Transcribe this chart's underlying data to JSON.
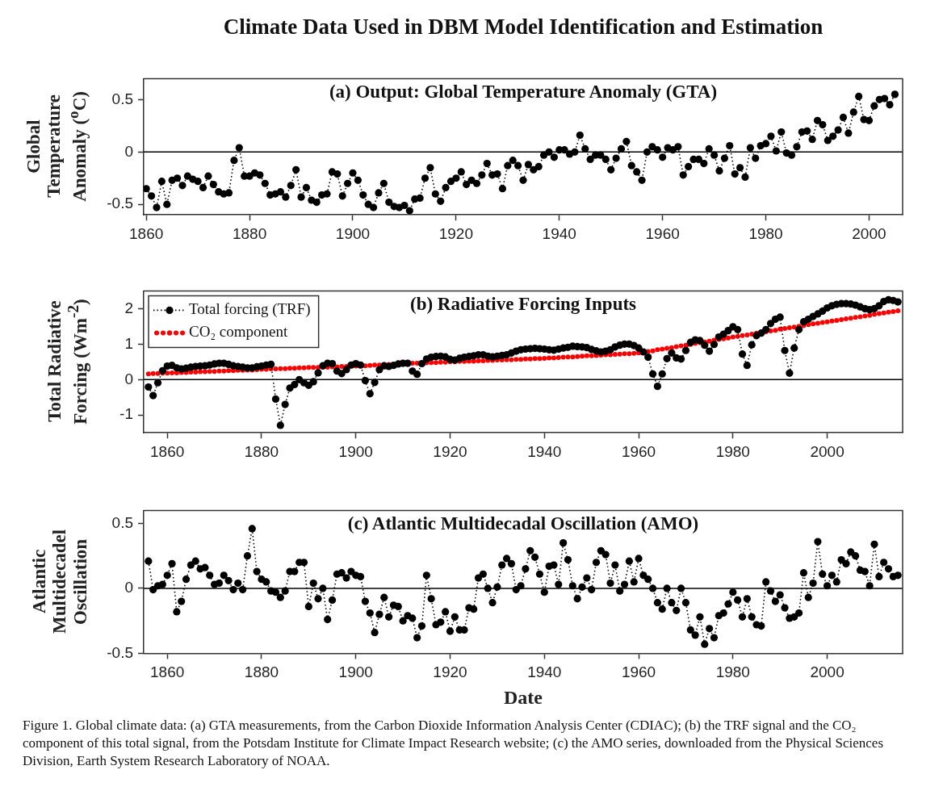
{
  "chart_data": [
    {
      "type": "line",
      "title": "(a) Output: Global Temperature Anomaly (GTA)",
      "ylabel": "Global Temperature Anomaly ($^{o}$C)",
      "annotations": [
        "Climate Data Used in DBM Model Identification and Estimation"
      ],
      "xlim": [
        1859.5,
        2006.5
      ],
      "xticks": [
        1860,
        1880,
        1900,
        1920,
        1940,
        1960,
        1980,
        2000
      ],
      "ylim": [
        -0.6,
        0.7
      ],
      "yticks": [
        -0.5,
        0,
        0.5
      ],
      "marker": "circle",
      "line_style": "dotted",
      "ref_lines": [
        {
          "axis": "y",
          "value": 0,
          "color": "#000000"
        }
      ],
      "series": [
        {
          "color": "#000000",
          "x": [
            1860,
            1861,
            1862,
            1863,
            1864,
            1865,
            1866,
            1867,
            1868,
            1869,
            1870,
            1871,
            1872,
            1873,
            1874,
            1875,
            1876,
            1877,
            1878,
            1879,
            1880,
            1881,
            1882,
            1883,
            1884,
            1885,
            1886,
            1887,
            1888,
            1889,
            1890,
            1891,
            1892,
            1893,
            1894,
            1895,
            1896,
            1897,
            1898,
            1899,
            1900,
            1901,
            1902,
            1903,
            1904,
            1905,
            1906,
            1907,
            1908,
            1909,
            1910,
            1911,
            1912,
            1913,
            1914,
            1915,
            1916,
            1917,
            1918,
            1919,
            1920,
            1921,
            1922,
            1923,
            1924,
            1925,
            1926,
            1927,
            1928,
            1929,
            1930,
            1931,
            1932,
            1933,
            1934,
            1935,
            1936,
            1937,
            1938,
            1939,
            1940,
            1941,
            1942,
            1943,
            1944,
            1945,
            1946,
            1947,
            1948,
            1949,
            1950,
            1951,
            1952,
            1953,
            1954,
            1955,
            1956,
            1957,
            1958,
            1959,
            1960,
            1961,
            1962,
            1963,
            1964,
            1965,
            1966,
            1967,
            1968,
            1969,
            1970,
            1971,
            1972,
            1973,
            1974,
            1975,
            1976,
            1977,
            1978,
            1979,
            1980,
            1981,
            1982,
            1983,
            1984,
            1985,
            1986,
            1987,
            1988,
            1989,
            1990,
            1991,
            1992,
            1993,
            1994,
            1995,
            1996,
            1997,
            1998,
            1999,
            2000,
            2001,
            2002,
            2003,
            2004,
            2005
          ],
          "values": [
            -0.35,
            -0.42,
            -0.53,
            -0.28,
            -0.5,
            -0.27,
            -0.25,
            -0.32,
            -0.23,
            -0.26,
            -0.28,
            -0.34,
            -0.23,
            -0.31,
            -0.38,
            -0.4,
            -0.39,
            -0.08,
            0.04,
            -0.23,
            -0.23,
            -0.2,
            -0.22,
            -0.3,
            -0.41,
            -0.4,
            -0.38,
            -0.43,
            -0.32,
            -0.17,
            -0.43,
            -0.34,
            -0.46,
            -0.48,
            -0.41,
            -0.4,
            -0.19,
            -0.21,
            -0.42,
            -0.3,
            -0.2,
            -0.27,
            -0.41,
            -0.5,
            -0.53,
            -0.39,
            -0.3,
            -0.48,
            -0.52,
            -0.53,
            -0.51,
            -0.56,
            -0.45,
            -0.44,
            -0.25,
            -0.15,
            -0.4,
            -0.47,
            -0.34,
            -0.28,
            -0.25,
            -0.19,
            -0.31,
            -0.27,
            -0.3,
            -0.22,
            -0.11,
            -0.22,
            -0.21,
            -0.35,
            -0.13,
            -0.08,
            -0.13,
            -0.27,
            -0.12,
            -0.17,
            -0.14,
            -0.03,
            0.0,
            -0.05,
            0.02,
            0.02,
            -0.02,
            0.0,
            0.16,
            0.03,
            -0.07,
            -0.03,
            -0.03,
            -0.07,
            -0.17,
            -0.06,
            0.03,
            0.1,
            -0.13,
            -0.19,
            -0.27,
            0.0,
            0.05,
            0.02,
            -0.05,
            0.04,
            0.02,
            0.05,
            -0.22,
            -0.14,
            -0.07,
            -0.07,
            -0.11,
            0.03,
            -0.03,
            -0.18,
            -0.06,
            0.06,
            -0.21,
            -0.15,
            -0.24,
            0.04,
            -0.06,
            0.06,
            0.08,
            0.15,
            0.01,
            0.19,
            -0.01,
            -0.03,
            0.05,
            0.19,
            0.2,
            0.12,
            0.3,
            0.26,
            0.11,
            0.15,
            0.21,
            0.33,
            0.18,
            0.38,
            0.53,
            0.31,
            0.3,
            0.44,
            0.5,
            0.51,
            0.45,
            0.55
          ]
        }
      ]
    },
    {
      "type": "line",
      "title": "(b) Radiative Forcing Inputs",
      "ylabel": "Total Radiative Forcing (Wm$^{-2}$)",
      "xlim": [
        1855,
        2016
      ],
      "xticks": [
        1860,
        1880,
        1900,
        1920,
        1940,
        1960,
        1980,
        2000
      ],
      "ylim": [
        -1.5,
        2.5
      ],
      "yticks": [
        -1,
        0,
        1,
        2
      ],
      "marker": "circle",
      "line_style": "dotted",
      "legend": "top left",
      "ref_lines": [
        {
          "axis": "y",
          "value": 0,
          "color": "#000000"
        }
      ],
      "series": [
        {
          "name": "Total forcing (TRF)",
          "color": "#000000",
          "x": [
            1856,
            1857,
            1858,
            1859,
            1860,
            1861,
            1862,
            1863,
            1864,
            1865,
            1866,
            1867,
            1868,
            1869,
            1870,
            1871,
            1872,
            1873,
            1874,
            1875,
            1876,
            1877,
            1878,
            1879,
            1880,
            1881,
            1882,
            1883,
            1884,
            1885,
            1886,
            1887,
            1888,
            1889,
            1890,
            1891,
            1892,
            1893,
            1894,
            1895,
            1896,
            1897,
            1898,
            1899,
            1900,
            1901,
            1902,
            1903,
            1904,
            1905,
            1906,
            1907,
            1908,
            1909,
            1910,
            1911,
            1912,
            1913,
            1914,
            1915,
            1916,
            1917,
            1918,
            1919,
            1920,
            1921,
            1922,
            1923,
            1924,
            1925,
            1926,
            1927,
            1928,
            1929,
            1930,
            1931,
            1932,
            1933,
            1934,
            1935,
            1936,
            1937,
            1938,
            1939,
            1940,
            1941,
            1942,
            1943,
            1944,
            1945,
            1946,
            1947,
            1948,
            1949,
            1950,
            1951,
            1952,
            1953,
            1954,
            1955,
            1956,
            1957,
            1958,
            1959,
            1960,
            1961,
            1962,
            1963,
            1964,
            1965,
            1966,
            1967,
            1968,
            1969,
            1970,
            1971,
            1972,
            1973,
            1974,
            1975,
            1976,
            1977,
            1978,
            1979,
            1980,
            1981,
            1982,
            1983,
            1984,
            1985,
            1986,
            1987,
            1988,
            1989,
            1990,
            1991,
            1992,
            1993,
            1994,
            1995,
            1996,
            1997,
            1998,
            1999,
            2000,
            2001,
            2002,
            2003,
            2004,
            2005,
            2006,
            2007,
            2008,
            2009,
            2010,
            2011,
            2012,
            2013,
            2014,
            2015
          ],
          "values": [
            -0.21,
            -0.45,
            -0.09,
            0.25,
            0.38,
            0.4,
            0.33,
            0.3,
            0.32,
            0.35,
            0.37,
            0.38,
            0.39,
            0.41,
            0.44,
            0.46,
            0.46,
            0.43,
            0.39,
            0.37,
            0.35,
            0.33,
            0.33,
            0.36,
            0.38,
            0.41,
            0.43,
            -0.55,
            -1.29,
            -0.7,
            -0.24,
            -0.14,
            0.0,
            -0.09,
            -0.16,
            -0.06,
            0.19,
            0.39,
            0.46,
            0.45,
            0.24,
            0.17,
            0.28,
            0.41,
            0.45,
            0.41,
            -0.03,
            -0.4,
            -0.08,
            0.28,
            0.39,
            0.37,
            0.4,
            0.44,
            0.46,
            0.46,
            0.24,
            0.15,
            0.45,
            0.58,
            0.63,
            0.65,
            0.66,
            0.64,
            0.57,
            0.55,
            0.6,
            0.63,
            0.65,
            0.67,
            0.7,
            0.7,
            0.66,
            0.64,
            0.66,
            0.68,
            0.7,
            0.75,
            0.8,
            0.84,
            0.86,
            0.87,
            0.88,
            0.87,
            0.86,
            0.84,
            0.83,
            0.86,
            0.89,
            0.91,
            0.94,
            0.93,
            0.92,
            0.9,
            0.85,
            0.81,
            0.78,
            0.8,
            0.84,
            0.92,
            0.97,
            1.0,
            1.0,
            0.96,
            0.89,
            0.78,
            0.63,
            0.16,
            -0.19,
            0.16,
            0.59,
            0.75,
            0.61,
            0.58,
            0.82,
            1.05,
            1.12,
            1.1,
            0.97,
            0.8,
            0.99,
            1.2,
            1.28,
            1.38,
            1.49,
            1.41,
            0.72,
            0.4,
            0.98,
            1.24,
            1.31,
            1.41,
            1.58,
            1.7,
            1.76,
            0.82,
            0.18,
            0.89,
            1.41,
            1.63,
            1.7,
            1.78,
            1.85,
            1.93,
            2.02,
            2.08,
            2.12,
            2.14,
            2.14,
            2.13,
            2.1,
            2.05,
            2.0,
            1.97,
            2.0,
            2.08,
            2.2,
            2.25,
            2.23,
            2.19
          ]
        },
        {
          "name": "CO₂ component",
          "type": "scatter",
          "color": "#ff0000",
          "x": [
            1856,
            1857,
            1858,
            1859,
            1860,
            1861,
            1862,
            1863,
            1864,
            1865,
            1866,
            1867,
            1868,
            1869,
            1870,
            1871,
            1872,
            1873,
            1874,
            1875,
            1876,
            1877,
            1878,
            1879,
            1880,
            1881,
            1882,
            1883,
            1884,
            1885,
            1886,
            1887,
            1888,
            1889,
            1890,
            1891,
            1892,
            1893,
            1894,
            1895,
            1896,
            1897,
            1898,
            1899,
            1900,
            1901,
            1902,
            1903,
            1904,
            1905,
            1906,
            1907,
            1908,
            1909,
            1910,
            1911,
            1912,
            1913,
            1914,
            1915,
            1916,
            1917,
            1918,
            1919,
            1920,
            1921,
            1922,
            1923,
            1924,
            1925,
            1926,
            1927,
            1928,
            1929,
            1930,
            1931,
            1932,
            1933,
            1934,
            1935,
            1936,
            1937,
            1938,
            1939,
            1940,
            1941,
            1942,
            1943,
            1944,
            1945,
            1946,
            1947,
            1948,
            1949,
            1950,
            1951,
            1952,
            1953,
            1954,
            1955,
            1956,
            1957,
            1958,
            1959,
            1960,
            1961,
            1962,
            1963,
            1964,
            1965,
            1966,
            1967,
            1968,
            1969,
            1970,
            1971,
            1972,
            1973,
            1974,
            1975,
            1976,
            1977,
            1978,
            1979,
            1980,
            1981,
            1982,
            1983,
            1984,
            1985,
            1986,
            1987,
            1988,
            1989,
            1990,
            1991,
            1992,
            1993,
            1994,
            1995,
            1996,
            1997,
            1998,
            1999,
            2000,
            2001,
            2002,
            2003,
            2004,
            2005,
            2006,
            2007,
            2008,
            2009,
            2010,
            2011,
            2012,
            2013,
            2014,
            2015
          ],
          "values": [
            0.16,
            0.17,
            0.17,
            0.18,
            0.18,
            0.19,
            0.19,
            0.2,
            0.2,
            0.21,
            0.21,
            0.22,
            0.22,
            0.23,
            0.23,
            0.24,
            0.24,
            0.25,
            0.25,
            0.26,
            0.26,
            0.27,
            0.27,
            0.28,
            0.29,
            0.29,
            0.3,
            0.3,
            0.31,
            0.31,
            0.32,
            0.32,
            0.33,
            0.33,
            0.34,
            0.34,
            0.34,
            0.35,
            0.35,
            0.36,
            0.36,
            0.37,
            0.37,
            0.38,
            0.38,
            null,
            0.39,
            0.4,
            0.41,
            0.41,
            0.42,
            0.43,
            null,
            null,
            null,
            null,
            0.46,
            0.46,
            null,
            0.47,
            0.48,
            0.48,
            0.49,
            0.49,
            0.5,
            0.5,
            0.51,
            0.51,
            0.52,
            0.52,
            0.53,
            0.53,
            0.54,
            0.54,
            0.55,
            0.55,
            0.56,
            0.56,
            0.57,
            0.57,
            0.58,
            0.58,
            0.59,
            0.59,
            0.6,
            0.61,
            0.61,
            0.62,
            0.63,
            0.64,
            0.64,
            0.65,
            0.66,
            0.67,
            0.67,
            0.68,
            0.69,
            0.7,
            0.7,
            0.71,
            0.72,
            0.73,
            0.73,
            0.74,
            0.75,
            null,
            0.79,
            0.81,
            0.84,
            0.86,
            0.88,
            0.9,
            0.93,
            0.95,
            0.97,
            0.99,
            1.02,
            1.04,
            1.06,
            1.08,
            1.11,
            1.13,
            1.15,
            1.17,
            1.2,
            1.22,
            1.24,
            1.26,
            1.28,
            1.31,
            null,
            1.35,
            1.37,
            1.39,
            1.42,
            1.44,
            1.46,
            1.48,
            1.5,
            1.52,
            1.55,
            1.57,
            1.59,
            1.61,
            1.63,
            1.65,
            1.67,
            1.69,
            1.71,
            1.73,
            1.75,
            1.77,
            1.79,
            1.81,
            1.84,
            1.86,
            1.88,
            1.9,
            1.92,
            1.94
          ]
        }
      ]
    },
    {
      "type": "line",
      "title": "(c) Atlantic Multidecadal Oscillation (AMO)",
      "xlabel": "Date",
      "ylabel": "Atlantic Multidecadel Oscillation",
      "annotations": [
        "Figure 1. Global climate data: (a) GTA measurements, from the Carbon Dioxide Information Analysis Center (CDIAC); (b) the TRF signal and the CO₂ component of this total signal, from the Potsdam Institute for Climate Impact Research website; (c) the AMO series, downloaded from the Physical Sciences Division, Earth System Research Laboratory of NOAA."
      ],
      "xlim": [
        1855,
        2016
      ],
      "xticks": [
        1860,
        1880,
        1900,
        1920,
        1940,
        1960,
        1980,
        2000
      ],
      "ylim": [
        -0.5,
        0.6
      ],
      "yticks": [
        -0.5,
        0,
        0.5
      ],
      "marker": "circle",
      "line_style": "dotted",
      "ref_lines": [
        {
          "axis": "y",
          "value": 0,
          "color": "#000000"
        }
      ],
      "series": [
        {
          "color": "#000000",
          "x": [
            1856,
            1857,
            1858,
            1859,
            1860,
            1861,
            1862,
            1863,
            1864,
            1865,
            1866,
            1867,
            1868,
            1869,
            1870,
            1871,
            1872,
            1873,
            1874,
            1875,
            1876,
            1877,
            1878,
            1879,
            1880,
            1881,
            1882,
            1883,
            1884,
            1885,
            1886,
            1887,
            1888,
            1889,
            1890,
            1891,
            1892,
            1893,
            1894,
            1895,
            1896,
            1897,
            1898,
            1899,
            1900,
            1901,
            1902,
            1903,
            1904,
            1905,
            1906,
            1907,
            1908,
            1909,
            1910,
            1911,
            1912,
            1913,
            1914,
            1915,
            1916,
            1917,
            1918,
            1919,
            1920,
            1921,
            1922,
            1923,
            1924,
            1925,
            1926,
            1927,
            1928,
            1929,
            1930,
            1931,
            1932,
            1933,
            1934,
            1935,
            1936,
            1937,
            1938,
            1939,
            1940,
            1941,
            1942,
            1943,
            1944,
            1945,
            1946,
            1947,
            1948,
            1949,
            1950,
            1951,
            1952,
            1953,
            1954,
            1955,
            1956,
            1957,
            1958,
            1959,
            1960,
            1961,
            1962,
            1963,
            1964,
            1965,
            1966,
            1967,
            1968,
            1969,
            1970,
            1971,
            1972,
            1973,
            1974,
            1975,
            1976,
            1977,
            1978,
            1979,
            1980,
            1981,
            1982,
            1983,
            1984,
            1985,
            1986,
            1987,
            1988,
            1989,
            1990,
            1991,
            1992,
            1993,
            1994,
            1995,
            1996,
            1997,
            1998,
            1999,
            2000,
            2001,
            2002,
            2003,
            2004,
            2005,
            2006,
            2007,
            2008,
            2009,
            2010,
            2011,
            2012,
            2013,
            2014,
            2015
          ],
          "values": [
            0.21,
            -0.01,
            0.02,
            0.03,
            0.1,
            0.19,
            -0.18,
            -0.1,
            0.07,
            0.18,
            0.21,
            0.15,
            0.16,
            0.1,
            0.03,
            0.04,
            0.1,
            0.06,
            -0.01,
            0.04,
            -0.01,
            0.25,
            0.46,
            0.13,
            0.07,
            0.05,
            -0.02,
            -0.03,
            -0.07,
            -0.02,
            0.13,
            0.13,
            0.2,
            0.2,
            -0.14,
            0.04,
            -0.08,
            0.0,
            -0.24,
            -0.09,
            0.11,
            0.12,
            0.08,
            0.13,
            0.1,
            0.09,
            -0.1,
            -0.19,
            -0.34,
            -0.2,
            -0.07,
            -0.22,
            -0.13,
            -0.14,
            -0.25,
            -0.21,
            -0.23,
            -0.38,
            -0.29,
            0.1,
            -0.08,
            -0.28,
            -0.26,
            -0.18,
            -0.33,
            -0.22,
            -0.32,
            -0.32,
            -0.15,
            -0.16,
            0.08,
            0.11,
            0.0,
            -0.11,
            0.01,
            0.18,
            0.23,
            0.19,
            -0.01,
            0.02,
            0.15,
            0.29,
            0.24,
            0.11,
            -0.03,
            0.17,
            0.18,
            0.03,
            0.35,
            0.22,
            0.02,
            -0.08,
            0.01,
            0.08,
            -0.01,
            0.2,
            0.29,
            0.26,
            0.04,
            0.18,
            -0.02,
            0.03,
            0.21,
            0.05,
            0.23,
            0.1,
            0.07,
            0.0,
            -0.11,
            -0.16,
            0.0,
            -0.11,
            -0.17,
            0.0,
            -0.11,
            -0.32,
            -0.36,
            -0.22,
            -0.43,
            -0.31,
            -0.38,
            -0.21,
            -0.19,
            -0.12,
            -0.03,
            -0.09,
            -0.22,
            -0.08,
            -0.22,
            -0.28,
            -0.29,
            0.05,
            -0.02,
            -0.1,
            -0.05,
            -0.15,
            -0.23,
            -0.22,
            -0.19,
            0.12,
            -0.07,
            0.04,
            0.36,
            0.11,
            0.02,
            0.1,
            0.05,
            0.22,
            0.19,
            0.28,
            0.25,
            0.14,
            0.13,
            0.02,
            0.34,
            0.09,
            0.2,
            0.15,
            0.09,
            0.1
          ]
        }
      ]
    }
  ]
}
